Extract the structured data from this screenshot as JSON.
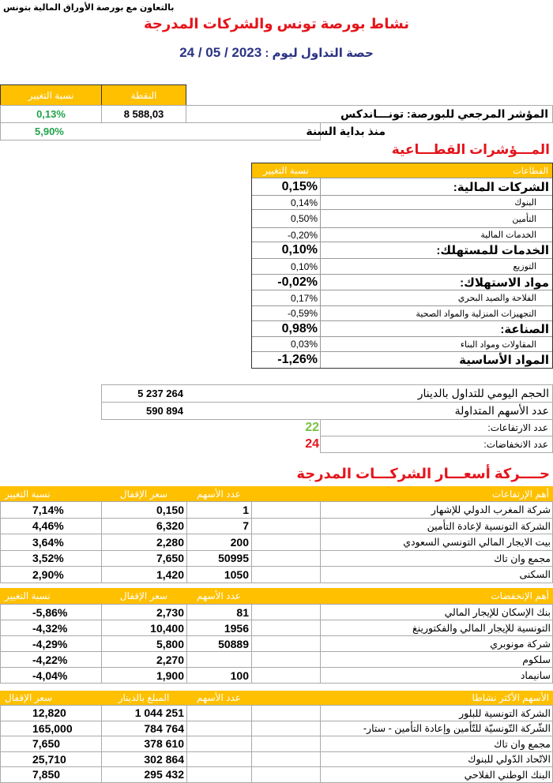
{
  "header": {
    "cooperation": "بالتعاون مع بورصة الأوراق المالية بتونس",
    "title": "نشاط بورصة تونس والشركات المدرجة",
    "session_label": "حصة التداول ليوم :",
    "session_date": "2023 / 05 / 24"
  },
  "index": {
    "col_change": "نسبة التغيير",
    "col_points": "النقطة",
    "label": "المؤشر المرجعي للبورصة: تونـــاندكس",
    "points": "8 588,03",
    "change": "0,13%",
    "ytd_label": "منذ بداية السنة",
    "ytd_change": "5,90%",
    "positive_color": "#1fa34a"
  },
  "sectors": {
    "title": "المـــؤشرات القطـــاعية",
    "col_sector": "القطاعات",
    "col_change": "نسبة التغيير",
    "rows": [
      {
        "name": "الشركات المالية:",
        "change": "0,15%",
        "main": true
      },
      {
        "name": "البنوك",
        "change": "0,14%",
        "main": false
      },
      {
        "name": "التأمين",
        "change": "0,50%",
        "main": false
      },
      {
        "name": "الخدمات المالية",
        "change": "-0,20%",
        "main": false
      },
      {
        "name": "الخدمات للمستهلك:",
        "change": "0,10%",
        "main": true
      },
      {
        "name": "التوزيع",
        "change": "0,10%",
        "main": false
      },
      {
        "name": "مواد الاستهلاك:",
        "change": "-0,02%",
        "main": true
      },
      {
        "name": "الفلاحة والصيد البحري",
        "change": "0,17%",
        "main": false
      },
      {
        "name": "التجهيزات المنزلية والمواد الصحية",
        "change": "-0,59%",
        "main": false
      },
      {
        "name": "الصناعة:",
        "change": "0,98%",
        "main": true
      },
      {
        "name": "المقاولات ومواد البناء",
        "change": "0,03%",
        "main": false
      },
      {
        "name": "المواد الأساسية",
        "change": "-1,26%",
        "main": true
      }
    ]
  },
  "volume": {
    "daily_label": "الحجم اليومي للتداول بالدينار",
    "daily_value": "5 237 264",
    "shares_label": "عدد الأسهم المتداولة",
    "shares_value": "590 894",
    "gainers_label": "عدد الارتفاعات:",
    "gainers_count": "22",
    "losers_label": "عدد الانخفاضات:",
    "losers_count": "24",
    "gainers_color": "#7ac143",
    "losers_color": "#e5141b"
  },
  "movers": {
    "title": "حــــركة أسعـــار الشركـــات المدرجة",
    "gainers": {
      "headers": {
        "name": "أهم الإرتفاعات",
        "shares": "عدد الأسهم",
        "close": "سعر الإقفال",
        "change": "نسبة التغيير"
      },
      "rows": [
        {
          "name": "شركة المغرب الدولي للإشهار",
          "shares": "1",
          "close": "0,150",
          "change": "7,14%"
        },
        {
          "name": "الشركة التونسية لإعادة التأمين",
          "shares": "7",
          "close": "6,320",
          "change": "4,46%"
        },
        {
          "name": "بيت الايجار المالي التونسي السعودي",
          "shares": "200",
          "close": "2,280",
          "change": "3,64%"
        },
        {
          "name": "مجمع وان تاك",
          "shares": "50995",
          "close": "7,650",
          "change": "3,52%"
        },
        {
          "name": "السكنى",
          "shares": "1050",
          "close": "1,420",
          "change": "2,90%"
        }
      ]
    },
    "losers": {
      "headers": {
        "name": "أهم الإنخفضات",
        "shares": "عدد الأسهم",
        "close": "سعر الإقفال",
        "change": "نسبة التغيير"
      },
      "rows": [
        {
          "name": "بنك الإسكان للإيجار المالي",
          "shares": "81",
          "close": "2,730",
          "change": "-5,86%"
        },
        {
          "name": "التونسية للإيجار المالي والفكتورينغ",
          "shares": "1956",
          "close": "10,400",
          "change": "-4,32%"
        },
        {
          "name": "شركة مونوبري",
          "shares": "50889",
          "close": "5,800",
          "change": "-4,29%"
        },
        {
          "name": "سلكوم",
          "shares": "",
          "close": "2,270",
          "change": "-4,22%"
        },
        {
          "name": "سانيماد",
          "shares": "100",
          "close": "1,900",
          "change": "-4,04%"
        }
      ]
    },
    "active": {
      "headers": {
        "name": "الأسهم الأكثر نشاطا",
        "shares": "عدد الأسهم",
        "amount": "المبلغ بالدينار",
        "close": "سعر الإقفال"
      },
      "rows": [
        {
          "name": "الشركة التونسية للبلور",
          "shares": "",
          "amount": "1 044 251",
          "close": "12,820"
        },
        {
          "name": "الشّركة التّونسيّة  للتّأمين وإعادة التأمين - ستار-",
          "shares": "",
          "amount": "784 764",
          "close": "165,000"
        },
        {
          "name": "مجمع وان تاك",
          "shares": "",
          "amount": "378 610",
          "close": "7,650"
        },
        {
          "name": "الاتّحاد الدّولي للبنوك",
          "shares": "",
          "amount": "302 864",
          "close": "25,710"
        },
        {
          "name": "البنك الوطني الفلاحي",
          "shares": "",
          "amount": "295 432",
          "close": "7,850"
        }
      ]
    },
    "header_color": "#ffc000"
  }
}
